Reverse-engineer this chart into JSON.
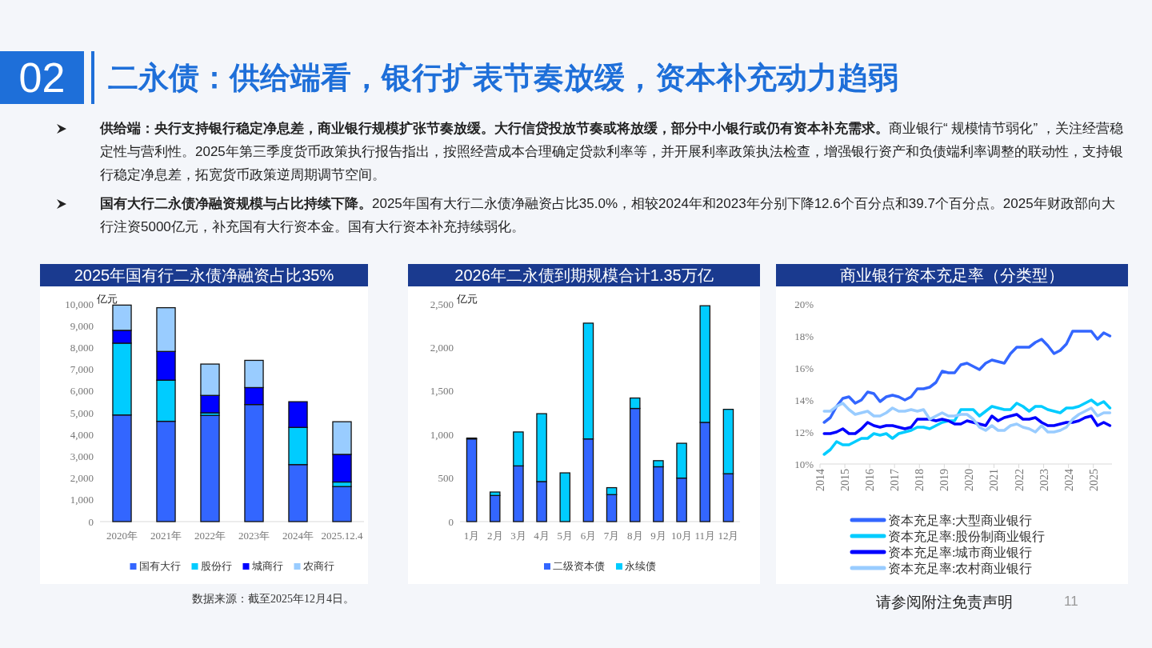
{
  "chart_data": [
    {
      "type": "other",
      "title": "二永债：供给端看，银行扩表节奏放缓，资本补充动力趋弱",
      "annotations": [
        "02",
        "供给端：央行支持银行稳定净息差，商业银行规模扩张节奏放缓。大行信贷投放节奏或将放缓，部分中小银行或仍有资本补充需求。",
        "商业银行“ 规模情节弱化” ，关注经营稳定性与营利性。2025年第三季度货币政策执行报告指出，按照经营成本合理确定贷款利率等，并开展利率政策执法检查，增强银行资产和负债端利率调整的联动性，支持银行稳定净息差，拓宽货币政策逆周期调节空间。",
        "国有大行二永债净融资规模与占比持续下降。",
        "2025年国有大行二永债净融资占比35.0%，相较2024年和2023年分别下降12.6个百分点和39.7个百分点。2025年财政部向大行注资5000亿元，补充国有大行资本金。国有大行资本补充持续弱化。",
        "数据来源：截至2025年12月4日。",
        "请参阅附注免责声明",
        "11"
      ]
    },
    {
      "type": "bar",
      "title": "2025年国有行二永债净融资占比35%",
      "ylabel": "亿元",
      "stacked": true,
      "legend": "bottom",
      "grid": false,
      "categories": [
        "2020年",
        "2021年",
        "2022年",
        "2023年",
        "2024年",
        "2025.12.4"
      ],
      "ylim": [
        0,
        10000
      ],
      "yticks": [
        {
          "value": 0,
          "label": "0"
        },
        {
          "value": 1000,
          "label": "1,000"
        },
        {
          "value": 2000,
          "label": "2,000"
        },
        {
          "value": 3000,
          "label": "3,000"
        },
        {
          "value": 4000,
          "label": "4,000"
        },
        {
          "value": 5000,
          "label": "5,000"
        },
        {
          "value": 6000,
          "label": "6,000"
        },
        {
          "value": 7000,
          "label": "7,000"
        },
        {
          "value": 8000,
          "label": "8,000"
        },
        {
          "value": 9000,
          "label": "9,000"
        },
        {
          "value": 10000,
          "label": "10,000"
        }
      ],
      "series": [
        {
          "name": "国有大行",
          "color": "#3366ff",
          "values": [
            4900,
            4610,
            4880,
            5380,
            2620,
            1610
          ]
        },
        {
          "name": "股份行",
          "color": "#00ccff",
          "values": [
            3300,
            1890,
            120,
            null,
            1710,
            210
          ]
        },
        {
          "name": "城商行",
          "color": "#0000ff",
          "values": [
            590,
            1320,
            800,
            780,
            1180,
            1270
          ]
        },
        {
          "name": "农商行",
          "color": "#99ccff",
          "values": [
            1160,
            2010,
            1440,
            1250,
            0,
            1500
          ]
        }
      ]
    },
    {
      "type": "bar",
      "title": "2026年二永债到期规模合计1.35万亿",
      "ylabel": "亿元",
      "stacked": true,
      "legend": "bottom",
      "grid": false,
      "categories": [
        "1月",
        "2月",
        "3月",
        "4月",
        "5月",
        "6月",
        "7月",
        "8月",
        "9月",
        "10月",
        "11月",
        "12月"
      ],
      "ylim": [
        0,
        2500
      ],
      "yticks": [
        {
          "value": 0,
          "label": "0"
        },
        {
          "value": 500,
          "label": "500"
        },
        {
          "value": 1000,
          "label": "1,000"
        },
        {
          "value": 1500,
          "label": "1,500"
        },
        {
          "value": 2000,
          "label": "2,000"
        },
        {
          "value": 2500,
          "label": "2,500"
        }
      ],
      "series": [
        {
          "name": "二级资本债",
          "color": "#3366ff",
          "values": [
            950,
            300,
            640,
            460,
            0,
            950,
            310,
            1300,
            630,
            500,
            1140,
            550
          ]
        },
        {
          "name": "永续债",
          "color": "#00ccff",
          "values": [
            10,
            40,
            390,
            780,
            560,
            1330,
            80,
            120,
            70,
            400,
            1340,
            740
          ]
        }
      ]
    },
    {
      "type": "line",
      "title": "商业银行资本充足率（分类型）",
      "legend": "bottom",
      "grid": false,
      "marker": "none",
      "line_style": "solid",
      "x": [
        "2014-03",
        "2014-06",
        "2014-09",
        "2014-12",
        "2015-03",
        "2015-06",
        "2015-09",
        "2015-12",
        "2016-03",
        "2016-06",
        "2016-09",
        "2016-12",
        "2017-03",
        "2017-06",
        "2017-09",
        "2017-12",
        "2018-03",
        "2018-06",
        "2018-09",
        "2018-12",
        "2019-03",
        "2019-06",
        "2019-09",
        "2019-12",
        "2020-03",
        "2020-06",
        "2020-09",
        "2020-12",
        "2021-03",
        "2021-06",
        "2021-09",
        "2021-12",
        "2022-03",
        "2022-06",
        "2022-09",
        "2022-12",
        "2023-03",
        "2023-06",
        "2023-09",
        "2023-12",
        "2024-03",
        "2024-06",
        "2024-09",
        "2024-12",
        "2025-03",
        "2025-06",
        "2025-09"
      ],
      "xlim": [
        "2014",
        "2025-10"
      ],
      "xticks": [
        "2014",
        "2015",
        "2016",
        "2017",
        "2018",
        "2019",
        "2020",
        "2021",
        "2022",
        "2023",
        "2024",
        "2025"
      ],
      "ylim": [
        10,
        20
      ],
      "yticks": [
        {
          "value": 10,
          "label": "10%"
        },
        {
          "value": 12,
          "label": "12%"
        },
        {
          "value": 14,
          "label": "14%"
        },
        {
          "value": 16,
          "label": "16%"
        },
        {
          "value": 18,
          "label": "18%"
        },
        {
          "value": 20,
          "label": "20%"
        }
      ],
      "series": [
        {
          "name": "资本充足率:大型商业银行",
          "color": "#3366ff",
          "values": [
            12.6,
            12.9,
            13.6,
            14.1,
            14.2,
            13.8,
            14.0,
            14.5,
            14.4,
            13.9,
            14.2,
            14.3,
            14.2,
            14.0,
            14.2,
            14.7,
            14.7,
            14.8,
            15.1,
            15.8,
            15.7,
            15.7,
            16.2,
            16.3,
            16.1,
            15.9,
            16.3,
            16.5,
            16.4,
            16.3,
            16.9,
            17.3,
            17.3,
            17.3,
            17.6,
            17.8,
            17.4,
            16.9,
            17.1,
            17.5,
            18.3,
            18.3,
            18.3,
            18.3,
            17.8,
            18.2,
            18.0
          ]
        },
        {
          "name": "资本充足率:股份制商业银行",
          "color": "#00ccff",
          "values": [
            10.6,
            10.9,
            11.4,
            11.2,
            11.2,
            11.4,
            11.6,
            11.6,
            11.9,
            11.8,
            11.9,
            11.6,
            11.9,
            12.0,
            12.1,
            12.3,
            12.3,
            12.2,
            12.4,
            12.6,
            12.7,
            12.7,
            13.4,
            13.4,
            13.4,
            13.0,
            13.3,
            13.6,
            13.5,
            13.4,
            13.4,
            13.8,
            13.6,
            13.3,
            13.6,
            13.6,
            13.4,
            13.3,
            13.2,
            13.5,
            13.5,
            13.6,
            13.8,
            14.0,
            13.7,
            13.9,
            13.5
          ]
        },
        {
          "name": "资本充足率:城市商业银行",
          "color": "#0000ff",
          "values": [
            11.9,
            11.9,
            12.0,
            12.2,
            11.9,
            11.9,
            12.2,
            12.6,
            12.4,
            12.3,
            12.4,
            12.4,
            12.3,
            12.2,
            12.3,
            12.8,
            12.8,
            12.8,
            12.7,
            12.8,
            12.7,
            12.5,
            12.5,
            12.7,
            12.6,
            12.5,
            12.4,
            13.0,
            12.7,
            12.9,
            13.0,
            13.1,
            12.8,
            12.8,
            12.9,
            12.6,
            12.4,
            12.4,
            12.5,
            12.6,
            12.6,
            12.7,
            12.9,
            13.0,
            12.4,
            12.6,
            12.4
          ]
        },
        {
          "name": "资本充足率:农村商业银行",
          "color": "#99ccff",
          "values": [
            13.3,
            13.3,
            13.6,
            13.8,
            13.4,
            13.1,
            13.2,
            13.3,
            13.0,
            13.0,
            13.2,
            13.5,
            13.3,
            13.3,
            13.4,
            13.3,
            13.4,
            12.8,
            13.0,
            13.2,
            13.0,
            13.0,
            13.1,
            13.1,
            12.8,
            12.3,
            12.1,
            12.4,
            12.1,
            12.1,
            12.4,
            12.5,
            12.3,
            12.2,
            12.0,
            12.4,
            12.0,
            12.0,
            12.1,
            12.3,
            12.8,
            13.1,
            13.3,
            13.5,
            13.0,
            13.2,
            13.2
          ]
        }
      ]
    }
  ]
}
